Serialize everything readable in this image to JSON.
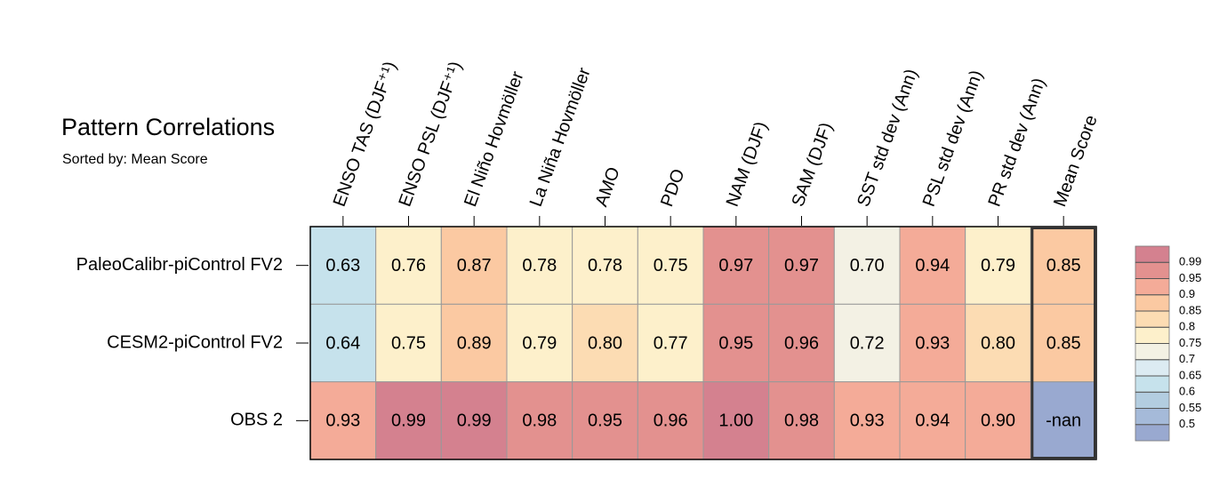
{
  "chart_data": {
    "type": "heatmap",
    "title": "Pattern Correlations",
    "subtitle": "Sorted by: Mean Score",
    "columns": [
      "ENSO TAS (DJF⁺¹)",
      "ENSO PSL (DJF⁺¹)",
      "El Niño Hovmöller",
      "La Niña Hovmöller",
      "AMO",
      "PDO",
      "NAM (DJF)",
      "SAM (DJF)",
      "SST std dev (Ann)",
      "PSL std dev (Ann)",
      "PR std dev (Ann)",
      "Mean Score"
    ],
    "rows": [
      "PaleoCalibr-piControl FV2",
      "CESM2-piControl FV2",
      "OBS 2"
    ],
    "values": [
      [
        0.63,
        0.76,
        0.87,
        0.78,
        0.78,
        0.75,
        0.97,
        0.97,
        0.7,
        0.94,
        0.79,
        0.85
      ],
      [
        0.64,
        0.75,
        0.89,
        0.79,
        0.8,
        0.77,
        0.95,
        0.96,
        0.72,
        0.93,
        0.8,
        0.85
      ],
      [
        0.93,
        0.99,
        0.99,
        0.98,
        0.95,
        0.96,
        1.0,
        0.98,
        0.93,
        0.94,
        0.9,
        null
      ]
    ],
    "value_labels": [
      [
        "0.63",
        "0.76",
        "0.87",
        "0.78",
        "0.78",
        "0.75",
        "0.97",
        "0.97",
        "0.70",
        "0.94",
        "0.79",
        "0.85"
      ],
      [
        "0.64",
        "0.75",
        "0.89",
        "0.79",
        "0.80",
        "0.77",
        "0.95",
        "0.96",
        "0.72",
        "0.93",
        "0.80",
        "0.85"
      ],
      [
        "0.93",
        "0.99",
        "0.99",
        "0.98",
        "0.95",
        "0.96",
        "1.00",
        "0.98",
        "0.93",
        "0.94",
        "0.90",
        "-nan"
      ]
    ],
    "levels": [
      0.5,
      0.55,
      0.6,
      0.65,
      0.7,
      0.75,
      0.8,
      0.85,
      0.9,
      0.95,
      0.99
    ],
    "colors": [
      "#99a9d0",
      "#a5bad9",
      "#b3cde0",
      "#c6e2ec",
      "#dcebf2",
      "#f3f1e4",
      "#fdf0cb",
      "#fcdcb3",
      "#fbc9a2",
      "#f4ab98",
      "#e3918f",
      "#d4818f"
    ]
  }
}
